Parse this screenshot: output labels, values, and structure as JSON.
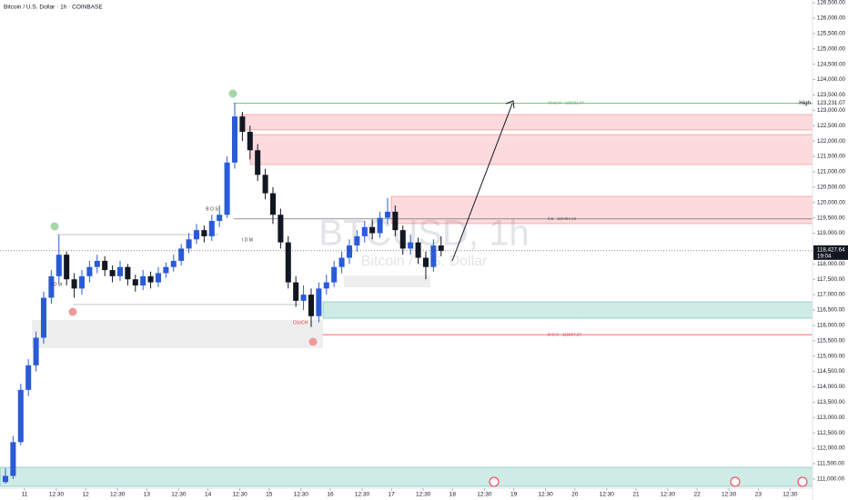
{
  "chart_data": {
    "type": "candlestick",
    "header": "Bitcoin / U.S. Dollar · 1h · COINBASE",
    "watermark": "BTCUSD, 1h",
    "watermark_sub": "Bitcoin / U.S. Dollar",
    "up_color": "#2a5bd7",
    "down_color": "#131722",
    "x": [
      -9,
      -6,
      -3,
      0,
      3,
      6,
      9,
      12,
      15,
      18,
      21,
      24,
      27,
      30,
      33,
      36,
      39,
      42,
      45,
      48,
      51,
      54,
      57,
      60,
      63,
      66,
      69,
      72,
      75,
      78,
      81,
      84,
      87,
      90,
      93,
      96,
      99,
      102,
      105,
      108,
      111,
      114,
      117,
      120,
      123,
      126,
      129,
      132,
      135,
      138,
      141,
      144,
      147,
      150,
      153,
      156,
      159,
      162
    ],
    "open": [
      110900,
      111100,
      112200,
      113900,
      114700,
      115600,
      116900,
      117600,
      118300,
      117500,
      117200,
      117600,
      117900,
      118100,
      117800,
      117600,
      117900,
      117500,
      117300,
      117600,
      117400,
      117700,
      117900,
      118100,
      118500,
      118800,
      119100,
      118900,
      119400,
      119600,
      121300,
      122800,
      122300,
      121700,
      120900,
      120300,
      119600,
      118700,
      117400,
      116800,
      117000,
      116300,
      117200,
      117400,
      117900,
      118200,
      118600,
      118900,
      119200,
      119000,
      119500,
      119700,
      119100,
      118500,
      118700,
      118200,
      117900,
      118600
    ],
    "high": [
      111350,
      112400,
      114100,
      114900,
      115800,
      117100,
      117800,
      118950,
      118400,
      117700,
      117800,
      118100,
      118300,
      118250,
      117950,
      118100,
      118000,
      117650,
      117800,
      117750,
      117900,
      118050,
      118300,
      118650,
      119000,
      119300,
      119250,
      119600,
      119900,
      121500,
      123231.07,
      122950,
      122500,
      121900,
      121100,
      120500,
      119800,
      118900,
      117600,
      117300,
      117200,
      117400,
      117650,
      118100,
      118400,
      118800,
      119100,
      119400,
      119450,
      119700,
      120150,
      119900,
      119250,
      118950,
      118850,
      118400,
      118800,
      118900
    ],
    "low": [
      110850,
      111000,
      112100,
      113700,
      114500,
      115400,
      116700,
      117400,
      117300,
      116900,
      117000,
      117400,
      117700,
      117600,
      117400,
      117450,
      117300,
      117100,
      117150,
      117200,
      117250,
      117550,
      117750,
      117950,
      118350,
      118650,
      118700,
      118750,
      119200,
      119500,
      121100,
      122000,
      121400,
      120700,
      120100,
      119300,
      118500,
      117200,
      116600,
      116500,
      115950,
      116100,
      117000,
      117250,
      117700,
      118000,
      118400,
      118700,
      118800,
      118850,
      119300,
      118900,
      118300,
      118300,
      118000,
      117500,
      117750,
      118250
    ],
    "close": [
      111100,
      112200,
      113900,
      114700,
      115600,
      116900,
      117600,
      118300,
      117500,
      117200,
      117600,
      117900,
      118100,
      117800,
      117600,
      117900,
      117500,
      117300,
      117600,
      117400,
      117700,
      117900,
      118100,
      118500,
      118800,
      119100,
      118900,
      119400,
      119600,
      121300,
      122800,
      122300,
      121700,
      120900,
      120300,
      119600,
      118700,
      117400,
      116800,
      117000,
      116300,
      117200,
      117400,
      117900,
      118200,
      118600,
      118900,
      119200,
      119000,
      119500,
      119700,
      119100,
      118500,
      118700,
      118200,
      117900,
      118600,
      118427.64
    ],
    "xlim": [
      -9.64,
      309.3
    ],
    "ylim": [
      110760,
      126590
    ],
    "xticks": [
      {
        "value": 0,
        "label": "11"
      },
      {
        "value": 12.5,
        "label": "12:30"
      },
      {
        "value": 24,
        "label": "12"
      },
      {
        "value": 36.5,
        "label": "12:30"
      },
      {
        "value": 48,
        "label": "13"
      },
      {
        "value": 60.5,
        "label": "12:30"
      },
      {
        "value": 72,
        "label": "14"
      },
      {
        "value": 84.5,
        "label": "12:30"
      },
      {
        "value": 96,
        "label": "15"
      },
      {
        "value": 108.5,
        "label": "12:30"
      },
      {
        "value": 120,
        "label": "16"
      },
      {
        "value": 132.5,
        "label": "12:30"
      },
      {
        "value": 144,
        "label": "17"
      },
      {
        "value": 156.5,
        "label": "12:30"
      },
      {
        "value": 168,
        "label": "18"
      },
      {
        "value": 180.5,
        "label": "12:30"
      },
      {
        "value": 192,
        "label": "19"
      },
      {
        "value": 204.5,
        "label": "12:30"
      },
      {
        "value": 216,
        "label": "20"
      },
      {
        "value": 228.5,
        "label": "12:30"
      },
      {
        "value": 240,
        "label": "21"
      },
      {
        "value": 252.5,
        "label": "12:30"
      },
      {
        "value": 264,
        "label": "22"
      },
      {
        "value": 276.5,
        "label": "12:30"
      },
      {
        "value": 288,
        "label": "23"
      },
      {
        "value": 300.5,
        "label": "12:30"
      }
    ],
    "yticks": [
      {
        "value": 111000,
        "label": "111,000.00"
      },
      {
        "value": 111500,
        "label": "111,500.00"
      },
      {
        "value": 112000,
        "label": "112,000.00"
      },
      {
        "value": 112500,
        "label": "112,500.00"
      },
      {
        "value": 113000,
        "label": "113,000.00"
      },
      {
        "value": 113500,
        "label": "113,500.00"
      },
      {
        "value": 114000,
        "label": "114,000.00"
      },
      {
        "value": 114500,
        "label": "114,500.00"
      },
      {
        "value": 115000,
        "label": "115,000.00"
      },
      {
        "value": 115500,
        "label": "115,500.00"
      },
      {
        "value": 116000,
        "label": "116,000.00"
      },
      {
        "value": 116500,
        "label": "116,500.00"
      },
      {
        "value": 117000,
        "label": "117,000.00"
      },
      {
        "value": 117500,
        "label": "117,500.00"
      },
      {
        "value": 118000,
        "label": "118,000.00"
      },
      {
        "value": 119000,
        "label": "119,000.00"
      },
      {
        "value": 119500,
        "label": "119,500.00"
      },
      {
        "value": 120000,
        "label": "120,000.00"
      },
      {
        "value": 120500,
        "label": "120,500.00"
      },
      {
        "value": 121000,
        "label": "121,000.00"
      },
      {
        "value": 121500,
        "label": "121,500.00"
      },
      {
        "value": 122000,
        "label": "122,000.00"
      },
      {
        "value": 122500,
        "label": "122,500.00"
      },
      {
        "value": 123000,
        "label": "123,000.00"
      },
      {
        "value": 123500,
        "label": "123,500.00"
      },
      {
        "value": 124000,
        "label": "124,000.00"
      },
      {
        "value": 124500,
        "label": "124,500.00"
      },
      {
        "value": 125000,
        "label": "125,000.00"
      },
      {
        "value": 125500,
        "label": "125,500.00"
      },
      {
        "value": 126000,
        "label": "126,000.00"
      },
      {
        "value": 126500,
        "label": "126,500.00"
      }
    ],
    "levels": [
      {
        "label": "ChoCH - 123231.07",
        "price": 123231.07,
        "from": 82,
        "color": "#4caf50"
      },
      {
        "label": "0.5 - 119464.22",
        "price": 119464.22,
        "from": 82,
        "color": "#555555"
      },
      {
        "label": "B O S - 115697.37",
        "price": 115697.37,
        "from": 117,
        "color": "#f23645"
      }
    ],
    "annotations": [
      "I D M",
      "I D M",
      "B O S",
      "ChoCH"
    ],
    "high_text": "High",
    "high_price": {
      "value": 123231.07,
      "label": "123,231.07"
    },
    "last_price": {
      "value": 118427.64,
      "label": "118,427.64"
    },
    "countdown": "19:04"
  }
}
